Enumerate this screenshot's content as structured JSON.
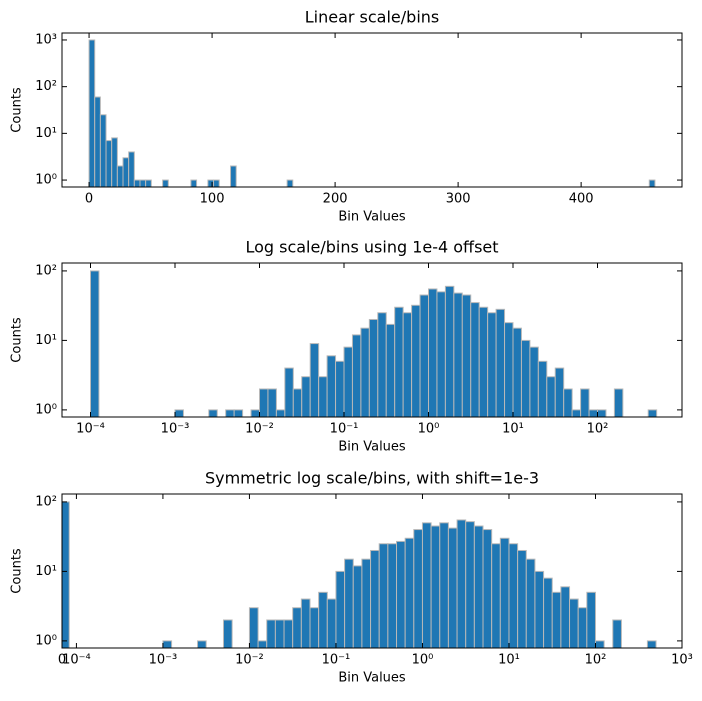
{
  "chart_data": [
    {
      "type": "histogram",
      "title": "Linear scale/bins",
      "xlabel": "Bin Values",
      "ylabel": "Counts",
      "xscale": "linear",
      "yscale": "log",
      "color": "#1f77b4",
      "edgecolor": "#b8b8b8",
      "xlim": [
        -22,
        482
      ],
      "ylim": [
        0.71,
        1410
      ],
      "xticks": [
        0,
        100,
        200,
        300,
        400
      ],
      "yticks": [
        {
          "value": 1,
          "label": "10⁰"
        },
        {
          "value": 10,
          "label": "10¹"
        },
        {
          "value": 100,
          "label": "10²"
        },
        {
          "value": 1000,
          "label": "10³"
        }
      ],
      "bins": [
        0,
        4.6,
        9.2,
        13.8,
        18.4,
        23,
        27.6,
        32.2,
        36.8,
        41.4,
        46,
        50.6,
        55.2,
        59.8,
        64.4,
        69,
        73.6,
        78.2,
        82.8,
        87.4,
        92,
        96.6,
        101.2,
        105.8,
        110.4,
        115,
        119.6,
        124.2,
        128.8,
        133.4,
        138,
        142.6,
        147.2,
        151.8,
        156.4,
        161,
        165.6,
        170.2,
        174.8,
        179.4,
        184,
        188.6,
        193.2,
        197.8,
        202.4,
        207,
        211.6,
        216.2,
        220.8,
        225.4,
        230,
        234.6,
        239.2,
        243.8,
        248.4,
        253,
        257.6,
        262.2,
        266.8,
        271.4,
        276,
        280.6,
        285.2,
        289.8,
        294.4,
        299,
        303.6,
        308.2,
        312.8,
        317.4,
        322,
        326.6,
        331.2,
        335.8,
        340.4,
        345,
        349.6,
        354.2,
        358.8,
        363.4,
        368,
        372.6,
        377.2,
        381.8,
        386.4,
        391,
        395.6,
        400.2,
        404.8,
        409.4,
        414,
        418.6,
        423.2,
        427.8,
        432.4,
        437,
        441.6,
        446.2,
        450.8,
        455.4,
        460
      ],
      "values": [
        1000,
        60,
        25,
        7,
        8,
        2,
        3,
        4,
        1,
        1,
        1,
        0,
        0,
        1,
        0,
        0,
        0,
        0,
        1,
        0,
        0,
        1,
        1,
        0,
        0,
        2,
        0,
        0,
        0,
        0,
        0,
        0,
        0,
        0,
        0,
        1,
        0,
        0,
        0,
        0,
        0,
        0,
        0,
        0,
        0,
        0,
        0,
        0,
        0,
        0,
        0,
        0,
        0,
        0,
        0,
        0,
        0,
        0,
        0,
        0,
        0,
        0,
        0,
        0,
        0,
        0,
        0,
        0,
        0,
        0,
        0,
        0,
        0,
        0,
        0,
        0,
        0,
        0,
        0,
        0,
        0,
        0,
        0,
        0,
        0,
        0,
        0,
        0,
        0,
        0,
        0,
        0,
        0,
        0,
        0,
        0,
        0,
        0,
        0,
        1
      ]
    },
    {
      "type": "histogram",
      "title": "Log scale/bins using 1e-4 offset",
      "xlabel": "Bin Values",
      "ylabel": "Counts",
      "xscale": "log",
      "yscale": "log",
      "color": "#1f77b4",
      "edgecolor": "#b8b8b8",
      "xlim": [
        4.6e-05,
        1000
      ],
      "ylim": [
        0.79,
        130
      ],
      "xticks": [
        {
          "value": 0.0001,
          "label": "10⁻⁴"
        },
        {
          "value": 0.001,
          "label": "10⁻³"
        },
        {
          "value": 0.01,
          "label": "10⁻²"
        },
        {
          "value": 0.1,
          "label": "10⁻¹"
        },
        {
          "value": 1,
          "label": "10⁰"
        },
        {
          "value": 10,
          "label": "10¹"
        },
        {
          "value": 100,
          "label": "10²"
        }
      ],
      "yticks": [
        {
          "value": 1,
          "label": "10⁰"
        },
        {
          "value": 10,
          "label": "10¹"
        },
        {
          "value": 100,
          "label": "10²"
        }
      ],
      "bins": [
        0.0001,
        0.0001259,
        0.0001585,
        0.0001995,
        0.0002512,
        0.0003162,
        0.0003981,
        0.0005012,
        0.000631,
        0.0007943,
        0.001,
        0.001259,
        0.001585,
        0.001995,
        0.002512,
        0.003162,
        0.003981,
        0.005012,
        0.00631,
        0.007943,
        0.01,
        0.01259,
        0.01585,
        0.01995,
        0.02512,
        0.03162,
        0.03981,
        0.05012,
        0.0631,
        0.07943,
        0.1,
        0.1259,
        0.1585,
        0.1995,
        0.2512,
        0.3162,
        0.3981,
        0.5012,
        0.631,
        0.7943,
        1,
        1.259,
        1.585,
        1.995,
        2.512,
        3.162,
        3.981,
        5.012,
        6.31,
        7.943,
        10,
        12.59,
        15.85,
        19.95,
        25.12,
        31.62,
        39.81,
        50.12,
        63.1,
        79.43,
        100,
        125.9,
        158.5,
        199.5,
        251.2,
        316.2,
        398.1,
        501.2
      ],
      "values": [
        100,
        0,
        0,
        0,
        0,
        0,
        0,
        0,
        0,
        0,
        1,
        0,
        0,
        0,
        1,
        0,
        1,
        1,
        0,
        1,
        2,
        2,
        1,
        4,
        2,
        3,
        9,
        3,
        6,
        5,
        8,
        12,
        15,
        20,
        25,
        17,
        30,
        25,
        32,
        45,
        55,
        50,
        60,
        48,
        45,
        35,
        30,
        25,
        28,
        18,
        15,
        10,
        8,
        5,
        3,
        4,
        2,
        1,
        2,
        1,
        1,
        0,
        2,
        0,
        0,
        0,
        1
      ]
    },
    {
      "type": "histogram",
      "title": "Symmetric log scale/bins, with shift=1e-3",
      "xlabel": "Bin Values",
      "ylabel": "Counts",
      "xscale": "symlog",
      "linthresh": 0.0001,
      "linscale": 0.15,
      "yscale": "log",
      "color": "#1f77b4",
      "edgecolor": "#b8b8b8",
      "xlim": [
        0,
        1000
      ],
      "ylim": [
        0.79,
        130
      ],
      "xticks": [
        0,
        {
          "value": 0.0001,
          "label": "10⁻⁴"
        },
        {
          "value": 0.001,
          "label": "10⁻³"
        },
        {
          "value": 0.01,
          "label": "10⁻²"
        },
        {
          "value": 0.1,
          "label": "10⁻¹"
        },
        {
          "value": 1,
          "label": "10⁰"
        },
        {
          "value": 10,
          "label": "10¹"
        },
        {
          "value": 100,
          "label": "10²"
        },
        {
          "value": 1000,
          "label": "10³"
        }
      ],
      "yticks": [
        {
          "value": 1,
          "label": "10⁰"
        },
        {
          "value": 10,
          "label": "10¹"
        },
        {
          "value": 100,
          "label": "10²"
        }
      ],
      "bins": [
        0,
        5e-05,
        0.0001,
        0.0001259,
        0.0001585,
        0.0001995,
        0.0002512,
        0.0003162,
        0.0003981,
        0.0005012,
        0.000631,
        0.0007943,
        0.001,
        0.001259,
        0.001585,
        0.001995,
        0.002512,
        0.003162,
        0.003981,
        0.005012,
        0.00631,
        0.007943,
        0.01,
        0.01259,
        0.01585,
        0.01995,
        0.02512,
        0.03162,
        0.03981,
        0.05012,
        0.0631,
        0.07943,
        0.1,
        0.1259,
        0.1585,
        0.1995,
        0.2512,
        0.3162,
        0.3981,
        0.5012,
        0.631,
        0.7943,
        1,
        1.259,
        1.585,
        1.995,
        2.512,
        3.162,
        3.981,
        5.012,
        6.31,
        7.943,
        10,
        12.59,
        15.85,
        19.95,
        25.12,
        31.62,
        39.81,
        50.12,
        63.1,
        79.43,
        100,
        125.9,
        158.5,
        199.5,
        251.2,
        316.2,
        398.1,
        501.2
      ],
      "values": [
        100,
        0,
        0,
        0,
        0,
        0,
        0,
        0,
        0,
        0,
        0,
        0,
        1,
        0,
        0,
        0,
        1,
        0,
        0,
        2,
        0,
        0,
        3,
        1,
        2,
        2,
        2,
        3,
        4,
        3,
        5,
        4,
        10,
        15,
        12,
        15,
        20,
        25,
        25,
        27,
        30,
        40,
        50,
        45,
        50,
        42,
        55,
        52,
        45,
        40,
        25,
        30,
        25,
        20,
        15,
        10,
        8,
        5,
        6,
        4,
        3,
        5,
        1,
        0,
        2,
        0,
        0,
        0,
        1
      ]
    }
  ]
}
